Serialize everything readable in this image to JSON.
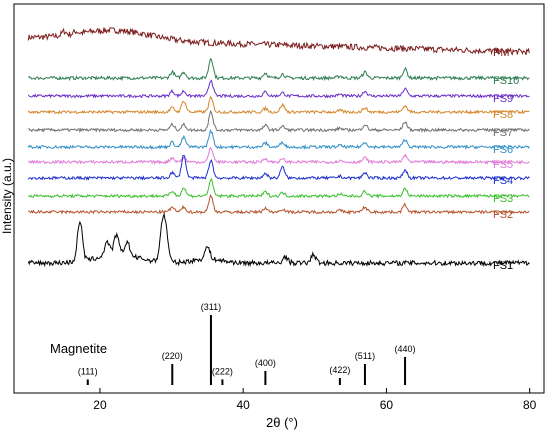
{
  "chart_data": {
    "type": "line",
    "title": "",
    "xlabel": "2θ (°)",
    "ylabel": "Intensity (a.u.)",
    "xlim": [
      8,
      82
    ],
    "xticks": [
      "20",
      "40",
      "60",
      "80"
    ],
    "xtick_values": [
      20,
      40,
      60,
      80
    ],
    "grid": false,
    "legend": "series labels at right end of each curve",
    "series": [
      {
        "name": "PM",
        "color": "#7b1c1c",
        "kind": "amorphous-hump",
        "peaks": [
          [
            15,
            0.5
          ],
          [
            16.6,
            0.3
          ]
        ]
      },
      {
        "name": "FS10",
        "color": "#2e7d4f",
        "kind": "magnetite",
        "peaks": [
          [
            30.1,
            0.3
          ],
          [
            31.7,
            0.3
          ],
          [
            35.5,
            1.0
          ],
          [
            43.1,
            0.25
          ],
          [
            45.5,
            0.2
          ],
          [
            53.5,
            0.1
          ],
          [
            57.0,
            0.3
          ],
          [
            62.6,
            0.45
          ]
        ]
      },
      {
        "name": "FS9",
        "color": "#6a2cc7",
        "kind": "magnetite",
        "peaks": [
          [
            30.1,
            0.3
          ],
          [
            31.7,
            0.3
          ],
          [
            35.5,
            1.0
          ],
          [
            43.1,
            0.25
          ],
          [
            45.5,
            0.2
          ],
          [
            53.5,
            0.1
          ],
          [
            57.0,
            0.3
          ],
          [
            62.6,
            0.45
          ]
        ]
      },
      {
        "name": "FS8",
        "color": "#d4862a",
        "kind": "magnetite",
        "peaks": [
          [
            30.1,
            0.3
          ],
          [
            31.7,
            0.8
          ],
          [
            35.5,
            1.0
          ],
          [
            43.1,
            0.25
          ],
          [
            45.5,
            0.5
          ],
          [
            53.5,
            0.1
          ],
          [
            57.0,
            0.3
          ],
          [
            62.6,
            0.45
          ]
        ]
      },
      {
        "name": "FS7",
        "color": "#707070",
        "kind": "magnetite",
        "peaks": [
          [
            30.1,
            0.3
          ],
          [
            31.7,
            0.3
          ],
          [
            35.5,
            1.0
          ],
          [
            43.1,
            0.25
          ],
          [
            45.5,
            0.2
          ],
          [
            53.5,
            0.1
          ],
          [
            57.0,
            0.3
          ],
          [
            62.6,
            0.45
          ]
        ]
      },
      {
        "name": "FS6",
        "color": "#2f8fc7",
        "kind": "magnetite",
        "peaks": [
          [
            30.1,
            0.3
          ],
          [
            31.7,
            0.6
          ],
          [
            35.5,
            1.0
          ],
          [
            43.1,
            0.25
          ],
          [
            45.5,
            0.3
          ],
          [
            53.5,
            0.1
          ],
          [
            57.0,
            0.3
          ],
          [
            62.6,
            0.45
          ]
        ]
      },
      {
        "name": "FS5",
        "color": "#e07ad8",
        "kind": "magnetite",
        "peaks": [
          [
            30.1,
            0.3
          ],
          [
            31.7,
            0.3
          ],
          [
            35.5,
            1.0
          ],
          [
            43.1,
            0.25
          ],
          [
            45.5,
            0.2
          ],
          [
            53.5,
            0.1
          ],
          [
            57.0,
            0.3
          ],
          [
            62.6,
            0.45
          ]
        ]
      },
      {
        "name": "FS4",
        "color": "#1c2fcc",
        "kind": "magnetite",
        "peaks": [
          [
            30.1,
            0.3
          ],
          [
            31.7,
            1.3
          ],
          [
            35.5,
            1.0
          ],
          [
            43.1,
            0.25
          ],
          [
            45.5,
            0.6
          ],
          [
            53.5,
            0.1
          ],
          [
            57.0,
            0.3
          ],
          [
            62.6,
            0.45
          ]
        ]
      },
      {
        "name": "FS3",
        "color": "#3bbf2b",
        "kind": "magnetite",
        "peaks": [
          [
            30.1,
            0.3
          ],
          [
            31.7,
            0.5
          ],
          [
            35.5,
            1.0
          ],
          [
            43.1,
            0.25
          ],
          [
            45.5,
            0.2
          ],
          [
            53.5,
            0.1
          ],
          [
            57.0,
            0.3
          ],
          [
            62.6,
            0.45
          ]
        ]
      },
      {
        "name": "FS2",
        "color": "#b5522a",
        "kind": "magnetite",
        "peaks": [
          [
            30.1,
            0.3
          ],
          [
            31.7,
            0.3
          ],
          [
            35.5,
            1.0
          ],
          [
            43.1,
            0.25
          ],
          [
            45.5,
            0.2
          ],
          [
            53.5,
            0.1
          ],
          [
            57.0,
            0.3
          ],
          [
            62.6,
            0.45
          ]
        ]
      },
      {
        "name": "FS1",
        "color": "#000000",
        "kind": "crystalline",
        "peaks": [
          [
            17.2,
            1.0
          ],
          [
            21.0,
            0.35
          ],
          [
            22.3,
            0.5
          ],
          [
            23.8,
            0.35
          ],
          [
            28.7,
            0.8
          ],
          [
            29.2,
            0.7
          ],
          [
            35.0,
            0.3
          ],
          [
            45.9,
            0.15
          ],
          [
            49.8,
            0.2
          ]
        ]
      }
    ],
    "reference": {
      "name": "Magnetite",
      "peaks": [
        {
          "x": 18.3,
          "label": "(111)",
          "intensity": 8
        },
        {
          "x": 30.1,
          "label": "(220)",
          "intensity": 30
        },
        {
          "x": 35.5,
          "label": "(311)",
          "intensity": 100
        },
        {
          "x": 37.1,
          "label": "(222)",
          "intensity": 8
        },
        {
          "x": 43.1,
          "label": "(400)",
          "intensity": 20
        },
        {
          "x": 53.5,
          "label": "(422)",
          "intensity": 10
        },
        {
          "x": 57.0,
          "label": "(511)",
          "intensity": 30
        },
        {
          "x": 62.6,
          "label": "(440)",
          "intensity": 40
        }
      ]
    }
  }
}
